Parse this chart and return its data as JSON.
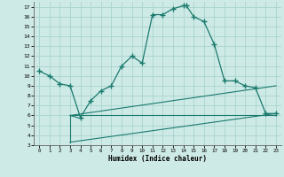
{
  "xlabel": "Humidex (Indice chaleur)",
  "background_color": "#ceeae6",
  "grid_color": "#a8d4ce",
  "line_color": "#1a7a6e",
  "xlim": [
    -0.5,
    23.5
  ],
  "ylim": [
    3,
    17.5
  ],
  "xticks": [
    0,
    1,
    2,
    3,
    4,
    5,
    6,
    7,
    8,
    9,
    10,
    11,
    12,
    13,
    14,
    15,
    16,
    17,
    18,
    19,
    20,
    21,
    22,
    23
  ],
  "yticks": [
    3,
    4,
    5,
    6,
    7,
    8,
    9,
    10,
    11,
    12,
    13,
    14,
    15,
    16,
    17
  ],
  "main_curve_x": [
    0,
    1,
    2,
    3,
    4,
    5,
    6,
    7,
    8,
    9,
    10,
    11,
    12,
    13,
    14,
    14.3,
    15,
    16,
    17,
    18,
    19,
    20,
    21,
    22,
    23
  ],
  "main_curve_y": [
    10.5,
    10,
    9.2,
    9.0,
    5.8,
    7.5,
    8.5,
    9.0,
    11.0,
    12.0,
    11.3,
    16.2,
    16.2,
    16.8,
    17.1,
    17.1,
    16.0,
    15.5,
    13.2,
    9.5,
    9.5,
    9.0,
    8.8,
    6.2,
    6.2
  ],
  "ref_lines": [
    {
      "x": [
        3,
        23
      ],
      "y": [
        6.0,
        6.0
      ]
    },
    {
      "x": [
        3,
        23
      ],
      "y": [
        6.0,
        9.0
      ]
    },
    {
      "x": [
        3,
        23
      ],
      "y": [
        3.3,
        6.2
      ]
    },
    {
      "x": [
        3,
        4
      ],
      "y": [
        6.0,
        5.7
      ]
    },
    {
      "x": [
        3,
        3
      ],
      "y": [
        3.3,
        6.0
      ]
    }
  ]
}
